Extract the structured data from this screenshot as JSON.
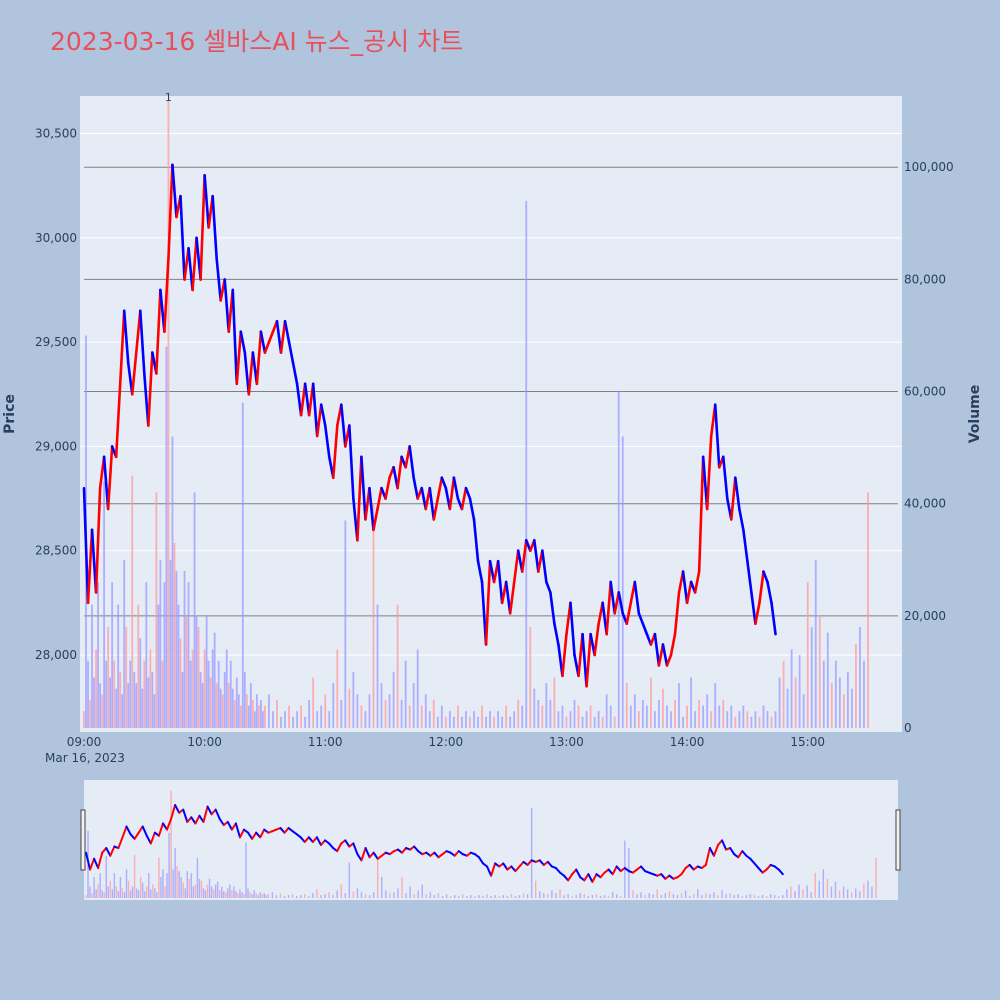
{
  "chart_data": {
    "type": "candlestick",
    "title": "2023-03-16 셀바스AI 뉴스_공시 차트",
    "date_label": "Mar 16, 2023",
    "y_price_label": "Price",
    "y_volume_label": "Volume",
    "price_ylim": [
      27650,
      30680
    ],
    "volume_ylim": [
      0,
      112700
    ],
    "price_ticks": [
      "28,000",
      "28,500",
      "29,000",
      "29,500",
      "30,000",
      "30,500"
    ],
    "price_tick_values": [
      28000,
      28500,
      29000,
      29500,
      30000,
      30500
    ],
    "volume_ticks": [
      "0",
      "20,000",
      "40,000",
      "60,000",
      "80,000",
      "100,000"
    ],
    "volume_tick_values": [
      0,
      20000,
      40000,
      60000,
      80000,
      100000
    ],
    "time_ticks": [
      "09:00",
      "10:00",
      "11:00",
      "12:00",
      "13:00",
      "14:00",
      "15:00"
    ],
    "time_tick_minutes": [
      0,
      60,
      120,
      180,
      240,
      300,
      360
    ],
    "x_range_minutes": [
      0,
      390
    ],
    "hlines_volume": [
      20000,
      40000,
      60000,
      80000,
      100000
    ],
    "annotations": [
      {
        "text": "1",
        "minute": 42
      }
    ],
    "colors": {
      "up": "#ff0000",
      "down": "#0000ff",
      "title": "#e8505b",
      "grid": "#ffffff",
      "plot_bg": "#e5ecf6",
      "paper_bg": "#b0c4de",
      "hline": "#808080"
    },
    "price_path": [
      [
        0,
        28800
      ],
      [
        2,
        28250
      ],
      [
        4,
        28600
      ],
      [
        6,
        28300
      ],
      [
        8,
        28800
      ],
      [
        10,
        28950
      ],
      [
        12,
        28700
      ],
      [
        14,
        29000
      ],
      [
        16,
        28950
      ],
      [
        18,
        29300
      ],
      [
        20,
        29650
      ],
      [
        22,
        29400
      ],
      [
        24,
        29250
      ],
      [
        26,
        29450
      ],
      [
        28,
        29650
      ],
      [
        30,
        29350
      ],
      [
        32,
        29100
      ],
      [
        34,
        29450
      ],
      [
        36,
        29350
      ],
      [
        38,
        29750
      ],
      [
        40,
        29550
      ],
      [
        42,
        29900
      ],
      [
        44,
        30350
      ],
      [
        46,
        30100
      ],
      [
        48,
        30200
      ],
      [
        50,
        29800
      ],
      [
        52,
        29950
      ],
      [
        54,
        29750
      ],
      [
        56,
        30000
      ],
      [
        58,
        29800
      ],
      [
        60,
        30300
      ],
      [
        62,
        30050
      ],
      [
        64,
        30200
      ],
      [
        66,
        29900
      ],
      [
        68,
        29700
      ],
      [
        70,
        29800
      ],
      [
        72,
        29550
      ],
      [
        74,
        29750
      ],
      [
        76,
        29300
      ],
      [
        78,
        29550
      ],
      [
        80,
        29450
      ],
      [
        82,
        29250
      ],
      [
        84,
        29450
      ],
      [
        86,
        29300
      ],
      [
        88,
        29550
      ],
      [
        90,
        29450
      ],
      [
        92,
        29500
      ],
      [
        94,
        29550
      ],
      [
        96,
        29600
      ],
      [
        98,
        29450
      ],
      [
        100,
        29600
      ],
      [
        102,
        29500
      ],
      [
        104,
        29400
      ],
      [
        106,
        29300
      ],
      [
        108,
        29150
      ],
      [
        110,
        29300
      ],
      [
        112,
        29150
      ],
      [
        114,
        29300
      ],
      [
        116,
        29050
      ],
      [
        118,
        29200
      ],
      [
        120,
        29100
      ],
      [
        122,
        28950
      ],
      [
        124,
        28850
      ],
      [
        126,
        29100
      ],
      [
        128,
        29200
      ],
      [
        130,
        29000
      ],
      [
        132,
        29100
      ],
      [
        134,
        28750
      ],
      [
        136,
        28550
      ],
      [
        138,
        28950
      ],
      [
        140,
        28650
      ],
      [
        142,
        28800
      ],
      [
        144,
        28600
      ],
      [
        146,
        28700
      ],
      [
        148,
        28800
      ],
      [
        150,
        28750
      ],
      [
        152,
        28850
      ],
      [
        154,
        28900
      ],
      [
        156,
        28800
      ],
      [
        158,
        28950
      ],
      [
        160,
        28900
      ],
      [
        162,
        29000
      ],
      [
        164,
        28850
      ],
      [
        166,
        28750
      ],
      [
        168,
        28800
      ],
      [
        170,
        28700
      ],
      [
        172,
        28800
      ],
      [
        174,
        28650
      ],
      [
        176,
        28750
      ],
      [
        178,
        28850
      ],
      [
        180,
        28800
      ],
      [
        182,
        28700
      ],
      [
        184,
        28850
      ],
      [
        186,
        28750
      ],
      [
        188,
        28700
      ],
      [
        190,
        28800
      ],
      [
        192,
        28750
      ],
      [
        194,
        28650
      ],
      [
        196,
        28450
      ],
      [
        198,
        28350
      ],
      [
        200,
        28050
      ],
      [
        202,
        28450
      ],
      [
        204,
        28350
      ],
      [
        206,
        28450
      ],
      [
        208,
        28250
      ],
      [
        210,
        28350
      ],
      [
        212,
        28200
      ],
      [
        214,
        28350
      ],
      [
        216,
        28500
      ],
      [
        218,
        28400
      ],
      [
        220,
        28550
      ],
      [
        222,
        28500
      ],
      [
        224,
        28550
      ],
      [
        226,
        28400
      ],
      [
        228,
        28500
      ],
      [
        230,
        28350
      ],
      [
        232,
        28300
      ],
      [
        234,
        28150
      ],
      [
        236,
        28050
      ],
      [
        238,
        27900
      ],
      [
        240,
        28100
      ],
      [
        242,
        28250
      ],
      [
        244,
        28000
      ],
      [
        246,
        27900
      ],
      [
        248,
        28100
      ],
      [
        250,
        27850
      ],
      [
        252,
        28100
      ],
      [
        254,
        28000
      ],
      [
        256,
        28150
      ],
      [
        258,
        28250
      ],
      [
        260,
        28100
      ],
      [
        262,
        28350
      ],
      [
        264,
        28200
      ],
      [
        266,
        28300
      ],
      [
        268,
        28200
      ],
      [
        270,
        28150
      ],
      [
        272,
        28250
      ],
      [
        274,
        28350
      ],
      [
        276,
        28200
      ],
      [
        278,
        28150
      ],
      [
        280,
        28100
      ],
      [
        282,
        28050
      ],
      [
        284,
        28100
      ],
      [
        286,
        27950
      ],
      [
        288,
        28050
      ],
      [
        290,
        27950
      ],
      [
        292,
        28000
      ],
      [
        294,
        28100
      ],
      [
        296,
        28300
      ],
      [
        298,
        28400
      ],
      [
        300,
        28250
      ],
      [
        302,
        28350
      ],
      [
        304,
        28300
      ],
      [
        306,
        28400
      ],
      [
        308,
        28950
      ],
      [
        310,
        28700
      ],
      [
        312,
        29050
      ],
      [
        314,
        29200
      ],
      [
        316,
        28900
      ],
      [
        318,
        28950
      ],
      [
        320,
        28750
      ],
      [
        322,
        28650
      ],
      [
        324,
        28850
      ],
      [
        326,
        28700
      ],
      [
        328,
        28600
      ],
      [
        330,
        28450
      ],
      [
        332,
        28300
      ],
      [
        334,
        28150
      ],
      [
        336,
        28250
      ],
      [
        338,
        28400
      ],
      [
        340,
        28350
      ],
      [
        342,
        28250
      ],
      [
        344,
        28100
      ]
    ],
    "volume_bars": [
      [
        0,
        3000
      ],
      [
        1,
        70000
      ],
      [
        2,
        12000
      ],
      [
        3,
        5000
      ],
      [
        4,
        22000
      ],
      [
        5,
        9000
      ],
      [
        6,
        14000
      ],
      [
        7,
        26000
      ],
      [
        8,
        8000
      ],
      [
        9,
        6000
      ],
      [
        10,
        44000
      ],
      [
        11,
        12000
      ],
      [
        12,
        18000
      ],
      [
        13,
        9000
      ],
      [
        14,
        26000
      ],
      [
        15,
        12000
      ],
      [
        16,
        7000
      ],
      [
        17,
        22000
      ],
      [
        18,
        10000
      ],
      [
        19,
        6000
      ],
      [
        20,
        30000
      ],
      [
        21,
        18000
      ],
      [
        22,
        8000
      ],
      [
        23,
        12000
      ],
      [
        24,
        45000
      ],
      [
        25,
        10000
      ],
      [
        26,
        8000
      ],
      [
        27,
        22000
      ],
      [
        28,
        16000
      ],
      [
        29,
        7000
      ],
      [
        30,
        12000
      ],
      [
        31,
        26000
      ],
      [
        32,
        9000
      ],
      [
        33,
        14000
      ],
      [
        34,
        10000
      ],
      [
        35,
        6000
      ],
      [
        36,
        42000
      ],
      [
        37,
        22000
      ],
      [
        38,
        30000
      ],
      [
        39,
        12000
      ],
      [
        40,
        26000
      ],
      [
        41,
        68000
      ],
      [
        42,
        112000
      ],
      [
        43,
        30000
      ],
      [
        44,
        52000
      ],
      [
        45,
        33000
      ],
      [
        46,
        28000
      ],
      [
        47,
        22000
      ],
      [
        48,
        16000
      ],
      [
        49,
        10000
      ],
      [
        50,
        28000
      ],
      [
        51,
        20000
      ],
      [
        52,
        26000
      ],
      [
        53,
        12000
      ],
      [
        54,
        14000
      ],
      [
        55,
        42000
      ],
      [
        56,
        20000
      ],
      [
        57,
        18000
      ],
      [
        58,
        10000
      ],
      [
        59,
        8000
      ],
      [
        60,
        14000
      ],
      [
        61,
        20000
      ],
      [
        62,
        12000
      ],
      [
        63,
        9000
      ],
      [
        64,
        14000
      ],
      [
        65,
        17000
      ],
      [
        66,
        8000
      ],
      [
        67,
        12000
      ],
      [
        68,
        7000
      ],
      [
        69,
        6000
      ],
      [
        70,
        10000
      ],
      [
        71,
        14000
      ],
      [
        72,
        8000
      ],
      [
        73,
        12000
      ],
      [
        74,
        7000
      ],
      [
        75,
        5000
      ],
      [
        76,
        9000
      ],
      [
        77,
        6000
      ],
      [
        78,
        4000
      ],
      [
        79,
        58000
      ],
      [
        80,
        10000
      ],
      [
        81,
        6000
      ],
      [
        82,
        4000
      ],
      [
        83,
        8000
      ],
      [
        84,
        5000
      ],
      [
        85,
        3000
      ],
      [
        86,
        6000
      ],
      [
        87,
        4000
      ],
      [
        88,
        5000
      ],
      [
        89,
        3000
      ],
      [
        90,
        4000
      ],
      [
        92,
        6000
      ],
      [
        94,
        3000
      ],
      [
        96,
        5000
      ],
      [
        98,
        2000
      ],
      [
        100,
        3000
      ],
      [
        102,
        4000
      ],
      [
        104,
        2000
      ],
      [
        106,
        3000
      ],
      [
        108,
        4000
      ],
      [
        110,
        2000
      ],
      [
        112,
        5000
      ],
      [
        114,
        9000
      ],
      [
        116,
        3000
      ],
      [
        118,
        4000
      ],
      [
        120,
        6000
      ],
      [
        122,
        3000
      ],
      [
        124,
        8000
      ],
      [
        126,
        14000
      ],
      [
        128,
        5000
      ],
      [
        130,
        37000
      ],
      [
        132,
        7000
      ],
      [
        134,
        10000
      ],
      [
        136,
        6000
      ],
      [
        138,
        4000
      ],
      [
        140,
        3000
      ],
      [
        142,
        6000
      ],
      [
        144,
        40000
      ],
      [
        146,
        22000
      ],
      [
        148,
        8000
      ],
      [
        150,
        5000
      ],
      [
        152,
        6000
      ],
      [
        154,
        10000
      ],
      [
        156,
        22000
      ],
      [
        158,
        5000
      ],
      [
        160,
        12000
      ],
      [
        162,
        4000
      ],
      [
        164,
        8000
      ],
      [
        166,
        14000
      ],
      [
        168,
        4000
      ],
      [
        170,
        6000
      ],
      [
        172,
        3000
      ],
      [
        174,
        5000
      ],
      [
        176,
        2000
      ],
      [
        178,
        4000
      ],
      [
        180,
        2000
      ],
      [
        182,
        3000
      ],
      [
        184,
        2000
      ],
      [
        186,
        4000
      ],
      [
        188,
        2000
      ],
      [
        190,
        3000
      ],
      [
        192,
        2000
      ],
      [
        194,
        3000
      ],
      [
        196,
        2000
      ],
      [
        198,
        4000
      ],
      [
        200,
        2000
      ],
      [
        202,
        3000
      ],
      [
        204,
        2000
      ],
      [
        206,
        3000
      ],
      [
        208,
        2000
      ],
      [
        210,
        4000
      ],
      [
        212,
        2000
      ],
      [
        214,
        3000
      ],
      [
        216,
        5000
      ],
      [
        218,
        4000
      ],
      [
        220,
        94000
      ],
      [
        222,
        18000
      ],
      [
        224,
        7000
      ],
      [
        226,
        5000
      ],
      [
        228,
        4000
      ],
      [
        230,
        8000
      ],
      [
        232,
        5000
      ],
      [
        234,
        9000
      ],
      [
        236,
        3000
      ],
      [
        238,
        4000
      ],
      [
        240,
        2000
      ],
      [
        242,
        3000
      ],
      [
        244,
        5000
      ],
      [
        246,
        4000
      ],
      [
        248,
        2000
      ],
      [
        250,
        3000
      ],
      [
        252,
        4000
      ],
      [
        254,
        2000
      ],
      [
        256,
        3000
      ],
      [
        258,
        2000
      ],
      [
        260,
        6000
      ],
      [
        262,
        4000
      ],
      [
        264,
        2000
      ],
      [
        266,
        60000
      ],
      [
        268,
        52000
      ],
      [
        270,
        8000
      ],
      [
        272,
        4000
      ],
      [
        274,
        6000
      ],
      [
        276,
        3000
      ],
      [
        278,
        5000
      ],
      [
        280,
        4000
      ],
      [
        282,
        9000
      ],
      [
        284,
        3000
      ],
      [
        286,
        5000
      ],
      [
        288,
        7000
      ],
      [
        290,
        4000
      ],
      [
        292,
        3000
      ],
      [
        294,
        5000
      ],
      [
        296,
        8000
      ],
      [
        298,
        2000
      ],
      [
        300,
        4000
      ],
      [
        302,
        9000
      ],
      [
        304,
        3000
      ],
      [
        306,
        5000
      ],
      [
        308,
        4000
      ],
      [
        310,
        6000
      ],
      [
        312,
        3000
      ],
      [
        314,
        8000
      ],
      [
        316,
        4000
      ],
      [
        318,
        5000
      ],
      [
        320,
        3000
      ],
      [
        322,
        4000
      ],
      [
        324,
        2000
      ],
      [
        326,
        3000
      ],
      [
        328,
        4000
      ],
      [
        330,
        3000
      ],
      [
        332,
        2000
      ],
      [
        334,
        3000
      ],
      [
        336,
        2000
      ],
      [
        338,
        4000
      ],
      [
        340,
        3000
      ],
      [
        342,
        2000
      ],
      [
        344,
        3000
      ],
      [
        346,
        9000
      ],
      [
        348,
        12000
      ],
      [
        350,
        7000
      ],
      [
        352,
        14000
      ],
      [
        354,
        9000
      ],
      [
        356,
        13000
      ],
      [
        358,
        6000
      ],
      [
        360,
        26000
      ],
      [
        362,
        18000
      ],
      [
        364,
        30000
      ],
      [
        366,
        20000
      ],
      [
        368,
        12000
      ],
      [
        370,
        17000
      ],
      [
        372,
        8000
      ],
      [
        374,
        12000
      ],
      [
        376,
        9000
      ],
      [
        378,
        6000
      ],
      [
        380,
        10000
      ],
      [
        382,
        7000
      ],
      [
        384,
        15000
      ],
      [
        386,
        18000
      ],
      [
        388,
        12000
      ],
      [
        390,
        42000
      ]
    ]
  }
}
